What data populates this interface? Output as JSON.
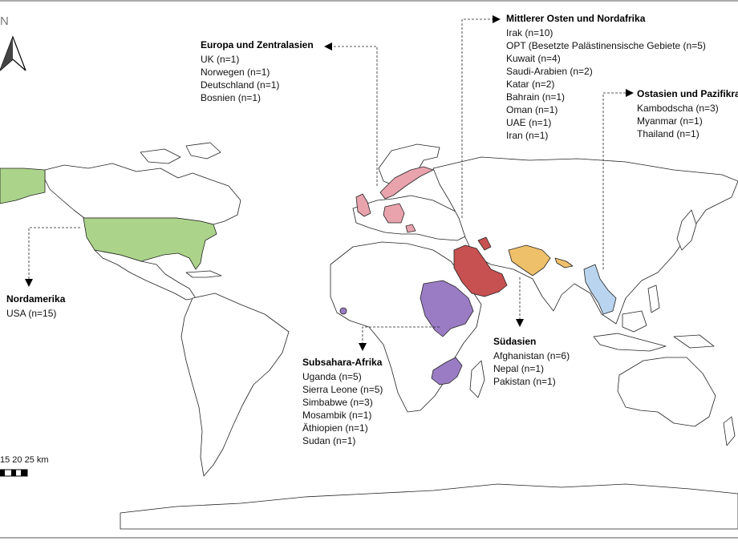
{
  "north_label": "N",
  "scale": {
    "labels": "15 20 25 km"
  },
  "colors": {
    "north_america": "#abd48a",
    "europe": "#e9a3ad",
    "mena": "#c75050",
    "subsahara": "#9a7cc4",
    "south_asia": "#eec06a",
    "east_asia": "#b9d4ee",
    "land_stroke": "#222222"
  },
  "regions": {
    "europa": {
      "title": "Europa und Zentralasien",
      "items": [
        "UK (n=1)",
        "Norwegen (n=1)",
        "Deutschland (n=1)",
        "Bosnien (n=1)"
      ]
    },
    "mena": {
      "title": "Mittlerer Osten und Nordafrika",
      "items": [
        "Irak (n=10)",
        "OPT (Besetzte Palästinensische Gebiete (n=5)",
        "Kuwait (n=4)",
        "Saudi-Arabien (n=2)",
        "Katar (n=2)",
        "Bahrain (n=1)",
        "Oman (n=1)",
        "UAE (n=1)",
        "Iran (n=1)"
      ]
    },
    "ostasien": {
      "title": "Ostasien und Pazifikraum",
      "items": [
        "Kambodscha (n=3)",
        "Myanmar (n=1)",
        "Thailand (n=1)"
      ]
    },
    "nordamerika": {
      "title": "Nordamerika",
      "items": [
        "USA (n=15)"
      ]
    },
    "subsahara": {
      "title": "Subsahara-Afrika",
      "items": [
        "Uganda (n=5)",
        "Sierra Leone (n=5)",
        "Simbabwe (n=3)",
        "Mosambik (n=1)",
        "Äthiopien (n=1)",
        "Sudan (n=1)"
      ]
    },
    "suedasien": {
      "title": "Südasien",
      "items": [
        "Afghanistan (n=6)",
        "Nepal (n=1)",
        "Pakistan (n=1)"
      ]
    }
  }
}
